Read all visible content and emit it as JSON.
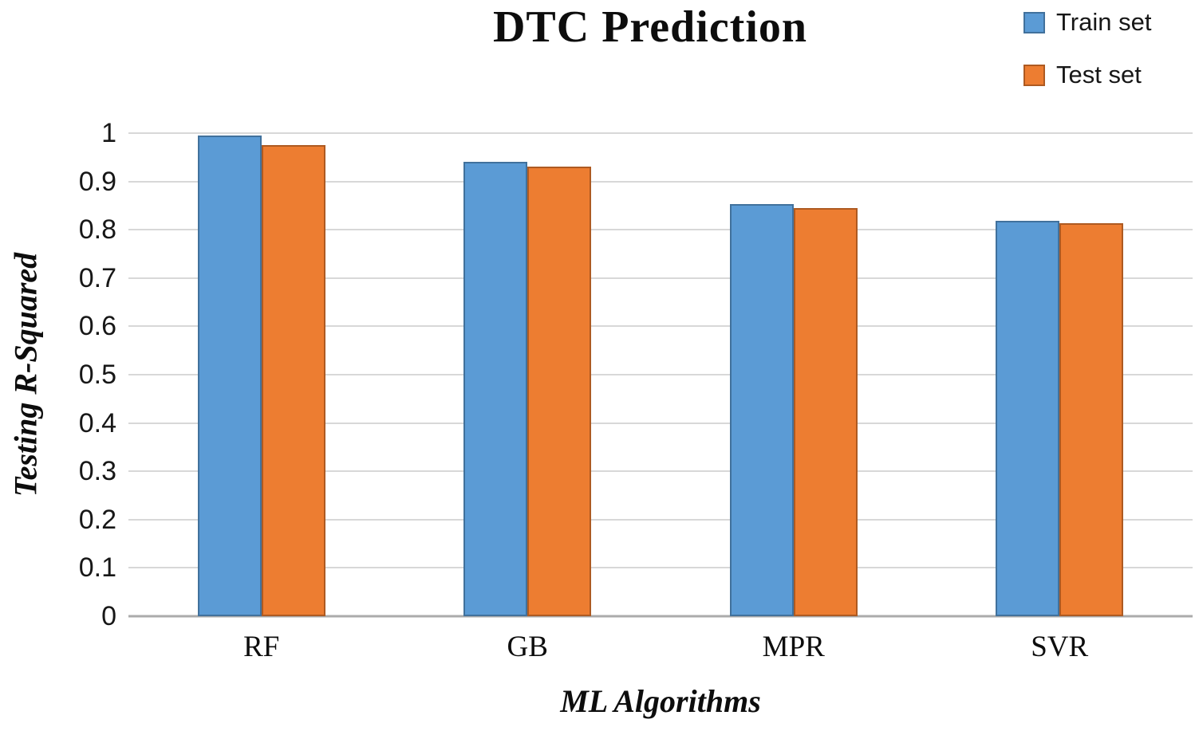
{
  "chart_data": {
    "type": "bar",
    "title": "DTC Prediction",
    "xlabel": "ML Algorithms",
    "ylabel": "Testing R-Squared",
    "categories": [
      "RF",
      "GB",
      "MPR",
      "SVR"
    ],
    "series": [
      {
        "name": "Train set",
        "color": "#5B9BD5",
        "border_color": "#41719C",
        "values": [
          0.995,
          0.94,
          0.853,
          0.818
        ]
      },
      {
        "name": "Test set",
        "color": "#ED7D31",
        "border_color": "#AE5A21",
        "values": [
          0.975,
          0.93,
          0.845,
          0.813
        ]
      }
    ],
    "ylim": [
      0,
      1
    ],
    "yticks": [
      "0",
      "0.1",
      "0.2",
      "0.3",
      "0.4",
      "0.5",
      "0.6",
      "0.7",
      "0.8",
      "0.9",
      "1"
    ],
    "grid": true,
    "grid_color": "#D8D8D8",
    "axis_line_color": "#ABABAB",
    "legend_position": "top-right"
  }
}
